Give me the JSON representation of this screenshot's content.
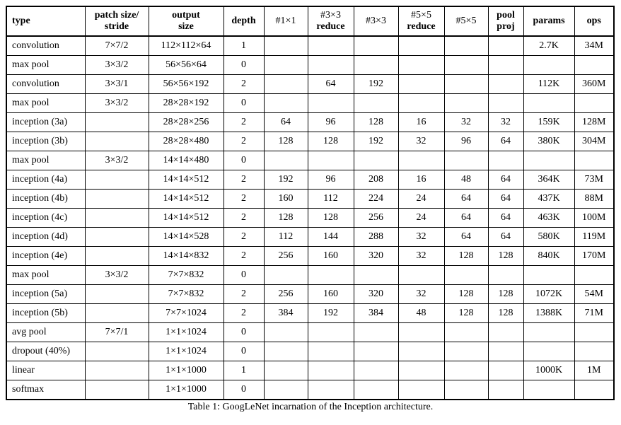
{
  "caption": "Table 1: GoogLeNet incarnation of the Inception architecture.",
  "table": {
    "columns": [
      {
        "id": "type",
        "lines": [
          "type"
        ]
      },
      {
        "id": "patch",
        "lines": [
          "patch size/",
          "stride"
        ]
      },
      {
        "id": "output",
        "lines": [
          "output",
          "size"
        ]
      },
      {
        "id": "depth",
        "lines": [
          "depth"
        ]
      },
      {
        "id": "num-1x1",
        "lines": [
          "#1×1"
        ]
      },
      {
        "id": "num-3x3-reduce",
        "lines": [
          "#3×3",
          "reduce"
        ]
      },
      {
        "id": "num-3x3",
        "lines": [
          "#3×3"
        ]
      },
      {
        "id": "num-5x5-reduce",
        "lines": [
          "#5×5",
          "reduce"
        ]
      },
      {
        "id": "num-5x5",
        "lines": [
          "#5×5"
        ]
      },
      {
        "id": "pool-proj",
        "lines": [
          "pool",
          "proj"
        ]
      },
      {
        "id": "params",
        "lines": [
          "params"
        ]
      },
      {
        "id": "ops",
        "lines": [
          "ops"
        ]
      }
    ],
    "rows": [
      [
        "convolution",
        "7×7/2",
        "112×112×64",
        "1",
        "",
        "",
        "",
        "",
        "",
        "",
        "2.7K",
        "34M"
      ],
      [
        "max pool",
        "3×3/2",
        "56×56×64",
        "0",
        "",
        "",
        "",
        "",
        "",
        "",
        "",
        ""
      ],
      [
        "convolution",
        "3×3/1",
        "56×56×192",
        "2",
        "",
        "64",
        "192",
        "",
        "",
        "",
        "112K",
        "360M"
      ],
      [
        "max pool",
        "3×3/2",
        "28×28×192",
        "0",
        "",
        "",
        "",
        "",
        "",
        "",
        "",
        ""
      ],
      [
        "inception (3a)",
        "",
        "28×28×256",
        "2",
        "64",
        "96",
        "128",
        "16",
        "32",
        "32",
        "159K",
        "128M"
      ],
      [
        "inception (3b)",
        "",
        "28×28×480",
        "2",
        "128",
        "128",
        "192",
        "32",
        "96",
        "64",
        "380K",
        "304M"
      ],
      [
        "max pool",
        "3×3/2",
        "14×14×480",
        "0",
        "",
        "",
        "",
        "",
        "",
        "",
        "",
        ""
      ],
      [
        "inception (4a)",
        "",
        "14×14×512",
        "2",
        "192",
        "96",
        "208",
        "16",
        "48",
        "64",
        "364K",
        "73M"
      ],
      [
        "inception (4b)",
        "",
        "14×14×512",
        "2",
        "160",
        "112",
        "224",
        "24",
        "64",
        "64",
        "437K",
        "88M"
      ],
      [
        "inception (4c)",
        "",
        "14×14×512",
        "2",
        "128",
        "128",
        "256",
        "24",
        "64",
        "64",
        "463K",
        "100M"
      ],
      [
        "inception (4d)",
        "",
        "14×14×528",
        "2",
        "112",
        "144",
        "288",
        "32",
        "64",
        "64",
        "580K",
        "119M"
      ],
      [
        "inception (4e)",
        "",
        "14×14×832",
        "2",
        "256",
        "160",
        "320",
        "32",
        "128",
        "128",
        "840K",
        "170M"
      ],
      [
        "max pool",
        "3×3/2",
        "7×7×832",
        "0",
        "",
        "",
        "",
        "",
        "",
        "",
        "",
        ""
      ],
      [
        "inception (5a)",
        "",
        "7×7×832",
        "2",
        "256",
        "160",
        "320",
        "32",
        "128",
        "128",
        "1072K",
        "54M"
      ],
      [
        "inception (5b)",
        "",
        "7×7×1024",
        "2",
        "384",
        "192",
        "384",
        "48",
        "128",
        "128",
        "1388K",
        "71M"
      ],
      [
        "avg pool",
        "7×7/1",
        "1×1×1024",
        "0",
        "",
        "",
        "",
        "",
        "",
        "",
        "",
        ""
      ],
      [
        "dropout (40%)",
        "",
        "1×1×1024",
        "0",
        "",
        "",
        "",
        "",
        "",
        "",
        "",
        ""
      ],
      [
        "linear",
        "",
        "1×1×1000",
        "1",
        "",
        "",
        "",
        "",
        "",
        "",
        "1000K",
        "1M"
      ],
      [
        "softmax",
        "",
        "1×1×1000",
        "0",
        "",
        "",
        "",
        "",
        "",
        "",
        "",
        ""
      ]
    ]
  }
}
